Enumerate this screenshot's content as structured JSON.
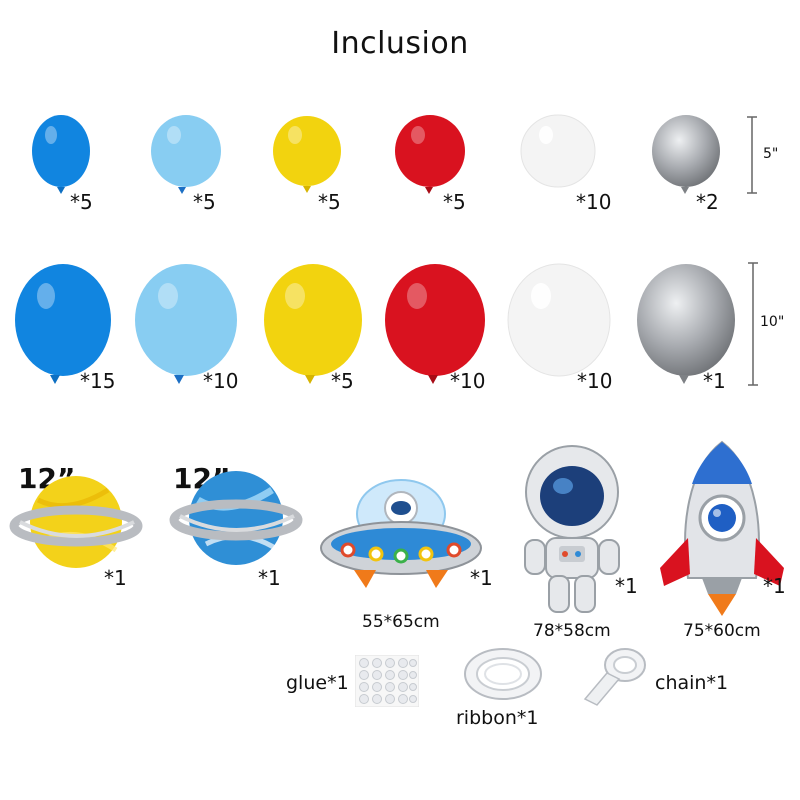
{
  "title": "Inclusion",
  "colors": {
    "blue": "#1185e0",
    "light_blue": "#88cdf2",
    "yellow": "#f2d30f",
    "red": "#d9121f",
    "white": "#f4f4f4",
    "silver": "#a8abb0"
  },
  "row_5inch": {
    "size_label": "5\"",
    "items": [
      {
        "color": "blue",
        "qty": "*5"
      },
      {
        "color": "light_blue",
        "qty": "*5"
      },
      {
        "color": "yellow",
        "qty": "*5"
      },
      {
        "color": "red",
        "qty": "*5"
      },
      {
        "color": "white",
        "qty": "*10"
      },
      {
        "color": "silver",
        "qty": "*2"
      }
    ]
  },
  "row_10inch": {
    "size_label": "10\"",
    "items": [
      {
        "color": "blue",
        "qty": "*15"
      },
      {
        "color": "light_blue",
        "qty": "*10"
      },
      {
        "color": "yellow",
        "qty": "*5"
      },
      {
        "color": "red",
        "qty": "*10"
      },
      {
        "color": "white",
        "qty": "*10"
      },
      {
        "color": "silver",
        "qty": "*1"
      }
    ]
  },
  "foils": {
    "planet_yellow": {
      "size": "12”",
      "qty": "*1"
    },
    "planet_blue": {
      "size": "12”",
      "qty": "*1"
    },
    "ufo": {
      "qty": "*1",
      "dimensions": "55*65cm"
    },
    "astronaut": {
      "qty": "*1",
      "dimensions": "78*58cm"
    },
    "rocket": {
      "qty": "*1",
      "dimensions": "75*60cm"
    }
  },
  "accessories": {
    "glue": "glue*1",
    "ribbon": "ribbon*1",
    "chain": "chain*1"
  }
}
